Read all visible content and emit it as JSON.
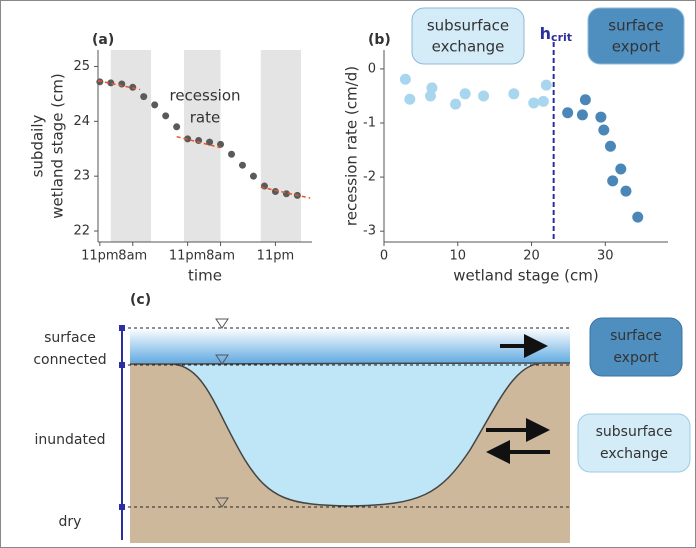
{
  "chart_data": [
    {
      "type": "scatter",
      "panel": "(a)",
      "xlabel": "time",
      "ylabel": [
        "subdaily",
        "wetland stage (cm)"
      ],
      "annotation": [
        "recession",
        "rate"
      ],
      "x": [
        0,
        3,
        6,
        9,
        12,
        15,
        18,
        21,
        24,
        27,
        30,
        33,
        36,
        39,
        42,
        45,
        48,
        51,
        54
      ],
      "values": [
        24.72,
        24.7,
        24.68,
        24.62,
        24.45,
        24.3,
        24.1,
        23.9,
        23.68,
        23.65,
        23.62,
        23.58,
        23.4,
        23.2,
        23.0,
        22.82,
        22.72,
        22.68,
        22.65
      ],
      "color": "#5a5a5a",
      "xlim": [
        -0.5,
        58
      ],
      "ylim": [
        21.8,
        25.3
      ],
      "xticks": [
        {
          "value": 0,
          "label": "11pm"
        },
        {
          "value": 9,
          "label": "8am"
        },
        {
          "value": 24,
          "label": "11pm"
        },
        {
          "value": 33,
          "label": "8am"
        },
        {
          "value": 48,
          "label": "11pm"
        }
      ],
      "yticks": [
        22,
        23,
        24,
        25
      ],
      "shaded": [
        [
          3,
          14
        ],
        [
          23,
          33
        ],
        [
          44,
          55
        ]
      ],
      "shade_color": "#e4e4e4",
      "fit_lines": [
        {
          "x": [
            -0.5,
            11
          ],
          "values": [
            24.74,
            24.58
          ]
        },
        {
          "x": [
            21,
            33
          ],
          "values": [
            23.72,
            23.52
          ]
        },
        {
          "x": [
            44,
            57.5
          ],
          "values": [
            22.8,
            22.6
          ]
        }
      ],
      "fit_color": "#e8552a"
    },
    {
      "type": "scatter",
      "panel": "(b)",
      "xlabel": "wetland stage (cm)",
      "ylabel": [
        "recession rate (cm/d)"
      ],
      "xlim": [
        0,
        38.5
      ],
      "ylim": [
        -3.2,
        0.35
      ],
      "xticks": [
        0,
        10,
        20,
        30
      ],
      "yticks": [
        0,
        -1,
        -2,
        -3
      ],
      "series": [
        {
          "color": "#a9d6ef",
          "x": [
            2.9,
            3.5,
            6.3,
            6.5,
            9.7,
            11,
            13.5,
            17.6,
            20.3,
            22,
            21.6
          ],
          "values": [
            -0.19,
            -0.56,
            -0.5,
            -0.35,
            -0.65,
            -0.46,
            -0.5,
            -0.46,
            -0.63,
            -0.3,
            -0.6
          ]
        },
        {
          "color": "#4a87b8",
          "x": [
            24.9,
            26.9,
            27.3,
            29.4,
            29.8,
            30.7,
            31,
            32.1,
            32.8,
            34.4
          ],
          "values": [
            -0.81,
            -0.85,
            -0.57,
            -0.89,
            -1.13,
            -1.43,
            -2.07,
            -1.85,
            -2.26,
            -2.74
          ]
        }
      ],
      "threshold": {
        "value": 23,
        "label": "h",
        "subscript": "crit",
        "color": "#2b2fa0"
      },
      "boxes": [
        {
          "lines": [
            "subsurface",
            "exchange"
          ],
          "color": "#d3ecf8"
        },
        {
          "lines": [
            "surface",
            "export"
          ],
          "color": "#4f8fc0"
        }
      ]
    }
  ],
  "diagram": {
    "panel": "(c)",
    "levels": [
      {
        "lines": [
          "surface",
          "connected"
        ]
      },
      {
        "lines": [
          "inundated"
        ]
      },
      {
        "lines": [
          "dry"
        ]
      }
    ],
    "boxes": [
      {
        "lines": [
          "surface",
          "export"
        ]
      },
      {
        "lines": [
          "subsurface",
          "exchange"
        ]
      }
    ]
  }
}
